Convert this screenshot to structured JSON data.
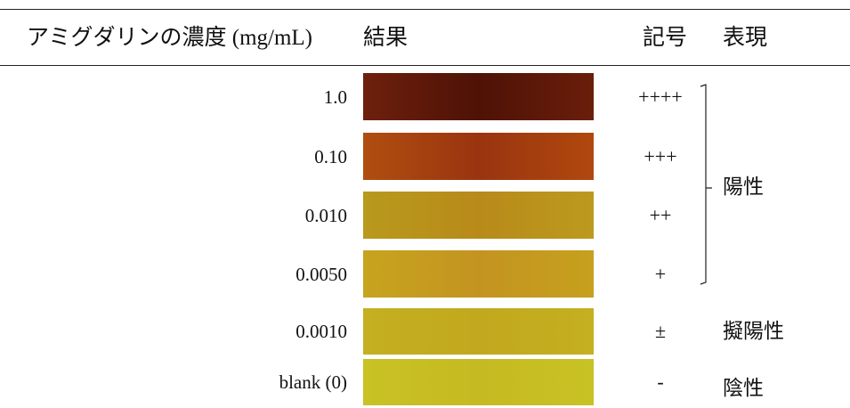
{
  "table": {
    "columns": [
      "アミグダリンの濃度 (mg/mL)",
      "結果",
      "記号",
      "表現"
    ],
    "rows": [
      {
        "concentration": "1.0",
        "symbol": "++++"
      },
      {
        "concentration": "0.10",
        "symbol": "+++"
      },
      {
        "concentration": "0.010",
        "symbol": "++"
      },
      {
        "concentration": "0.0050",
        "symbol": "+"
      },
      {
        "concentration": "0.0010",
        "symbol": "±"
      },
      {
        "concentration": "blank (0)",
        "symbol": "-"
      }
    ],
    "expressions": [
      "陽性",
      "擬陽性",
      "陰性"
    ]
  }
}
